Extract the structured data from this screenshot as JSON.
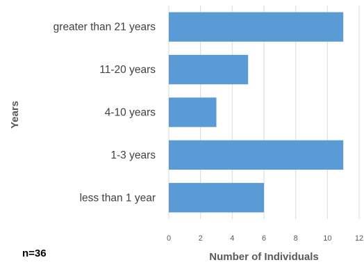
{
  "chart_data": {
    "type": "bar",
    "orientation": "horizontal",
    "categories": [
      "greater than 21 years",
      "11-20 years",
      "4-10 years",
      "1-3 years",
      "less than 1 year"
    ],
    "values": [
      11,
      5,
      3,
      11,
      6
    ],
    "xlabel": "Number of Individuals",
    "ylabel": "Years",
    "xlim": [
      0,
      12
    ],
    "xticks": [
      0,
      2,
      4,
      6,
      8,
      10,
      12
    ],
    "grid": true,
    "bar_color": "#5b9bd5",
    "annotation": "n=36"
  }
}
